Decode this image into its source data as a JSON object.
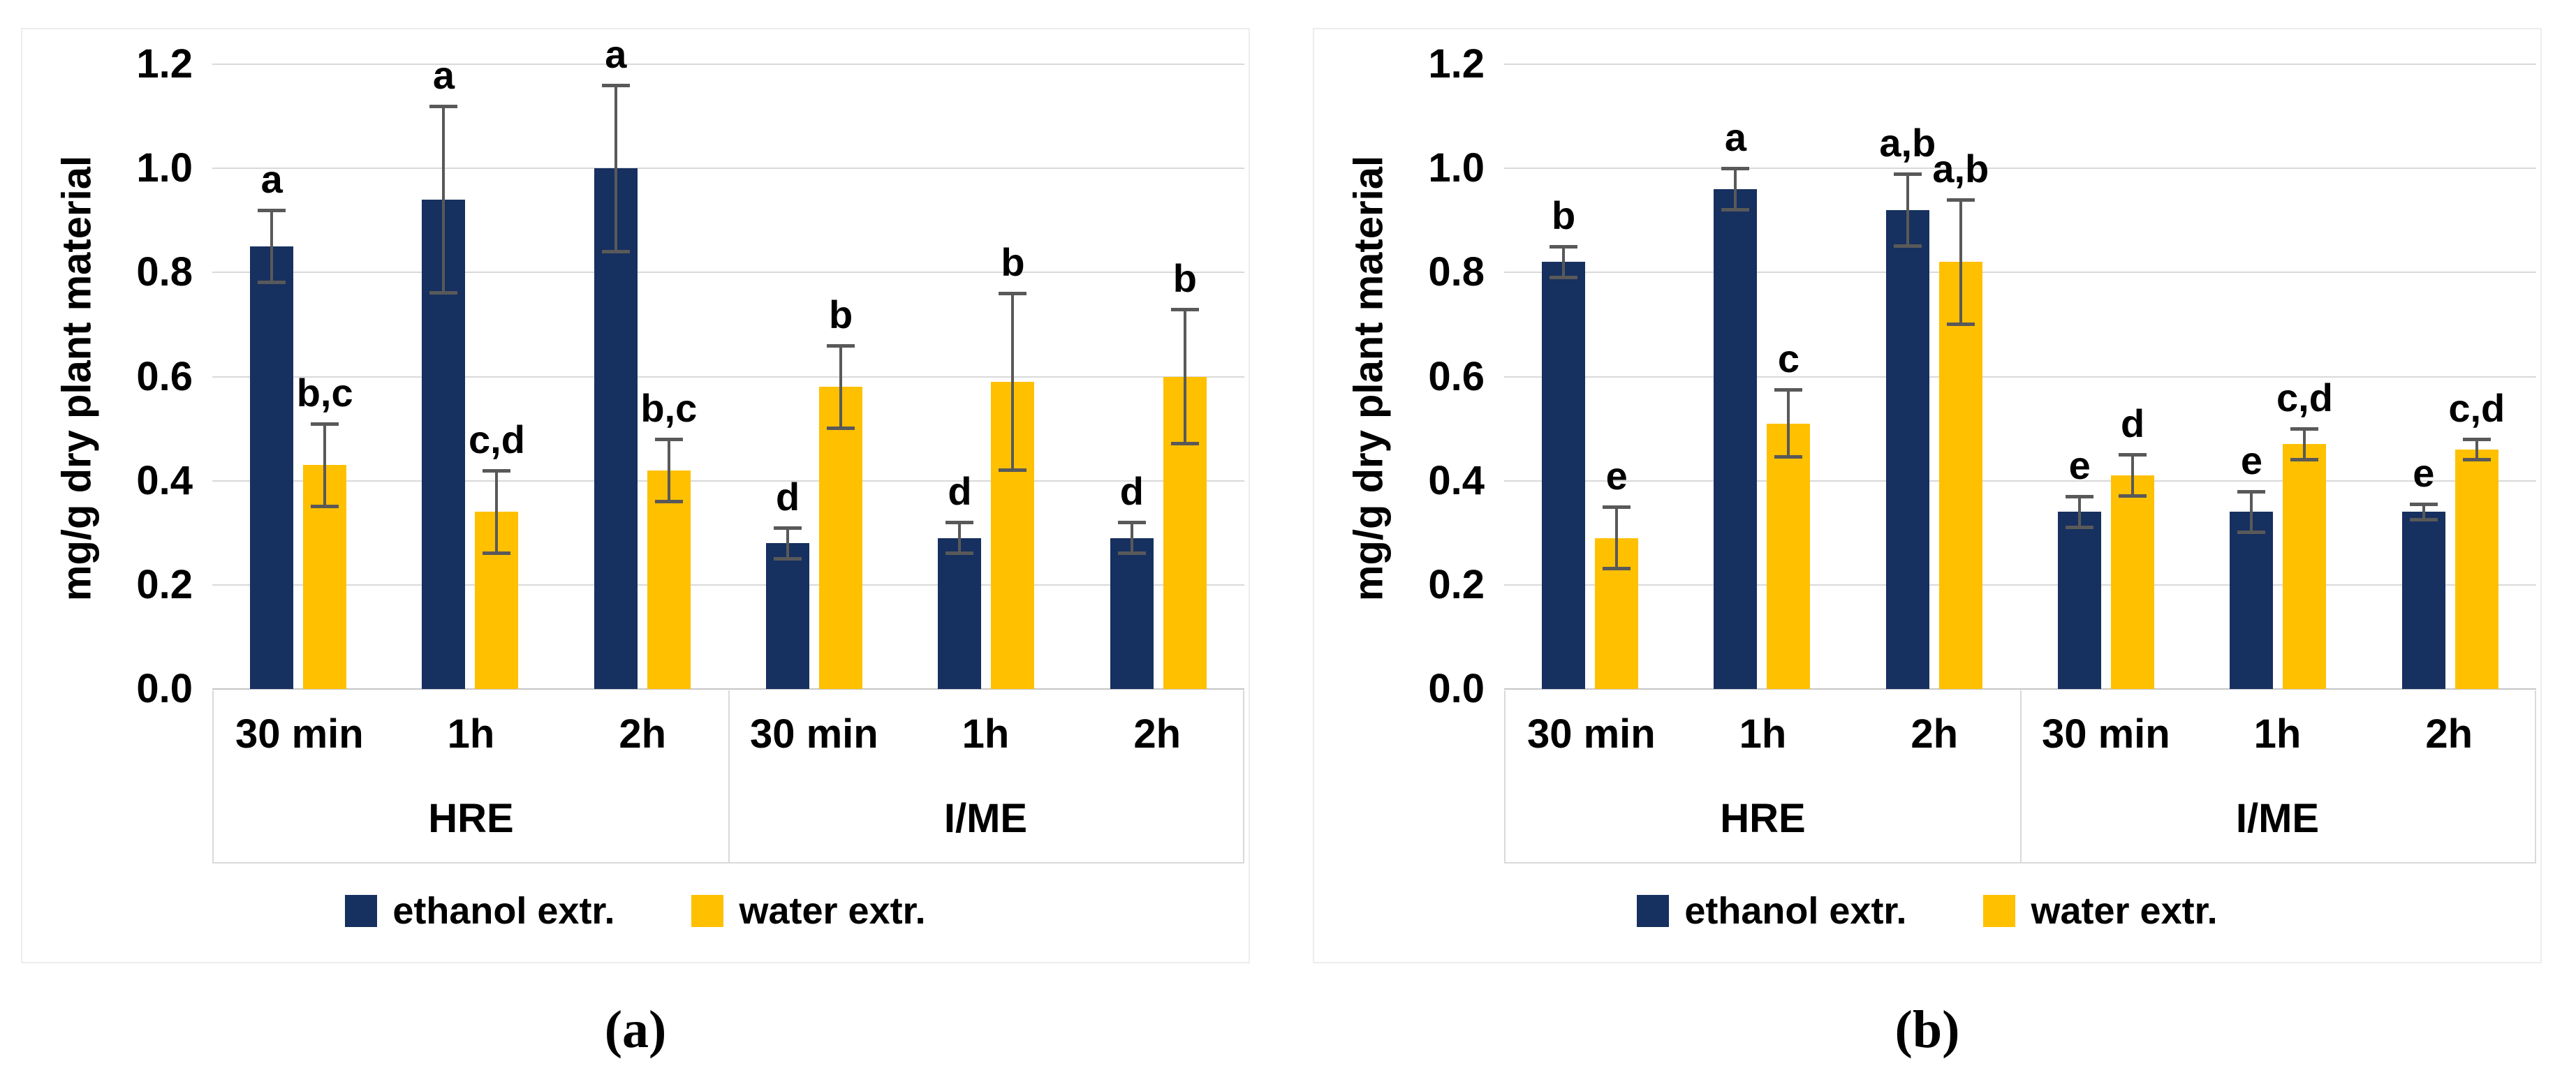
{
  "figure": {
    "background": "#ffffff",
    "panel_border_color": "#ededed",
    "grid_color": "#d9d9d9",
    "axis_line_color": "#c6c6c6",
    "error_bar_color": "#595959"
  },
  "chart_data": [
    {
      "type": "bar",
      "id": "a",
      "caption": "(a)",
      "ylabel": "mg/g dry plant material",
      "xlabel": "",
      "ylim": [
        0.0,
        1.2
      ],
      "yticks": [
        "0.0",
        "0.2",
        "0.4",
        "0.6",
        "0.8",
        "1.0",
        "1.2"
      ],
      "grid": true,
      "legend_position": "bottom",
      "categories": [
        "30 min",
        "1h",
        "2h",
        "30 min",
        "1h",
        "2h"
      ],
      "group_labels": [
        "HRE",
        "I/ME"
      ],
      "series": [
        {
          "name": "ethanol extr.",
          "color": "#16305f",
          "values": [
            0.85,
            0.94,
            1.0,
            0.28,
            0.29,
            0.29
          ],
          "errors": [
            0.07,
            0.18,
            0.16,
            0.03,
            0.03,
            0.03
          ],
          "letters": [
            "a",
            "a",
            "a",
            "d",
            "d",
            "d"
          ]
        },
        {
          "name": "water extr.",
          "color": "#ffc000",
          "values": [
            0.43,
            0.34,
            0.42,
            0.58,
            0.59,
            0.6
          ],
          "errors": [
            0.08,
            0.08,
            0.06,
            0.08,
            0.17,
            0.13
          ],
          "letters": [
            "b,c",
            "c,d",
            "b,c",
            "b",
            "b",
            "b"
          ]
        }
      ]
    },
    {
      "type": "bar",
      "id": "b",
      "caption": "(b)",
      "ylabel": "mg/g dry plant material",
      "xlabel": "",
      "ylim": [
        0.0,
        1.2
      ],
      "yticks": [
        "0.0",
        "0.2",
        "0.4",
        "0.6",
        "0.8",
        "1.0",
        "1.2"
      ],
      "grid": true,
      "legend_position": "bottom",
      "categories": [
        "30 min",
        "1h",
        "2h",
        "30 min",
        "1h",
        "2h"
      ],
      "group_labels": [
        "HRE",
        "I/ME"
      ],
      "series": [
        {
          "name": "ethanol extr.",
          "color": "#16305f",
          "values": [
            0.82,
            0.96,
            0.92,
            0.34,
            0.34,
            0.34
          ],
          "errors": [
            0.03,
            0.04,
            0.07,
            0.03,
            0.04,
            0.015
          ],
          "letters": [
            "b",
            "a",
            "a,b",
            "e",
            "e",
            "e"
          ]
        },
        {
          "name": "water extr.",
          "color": "#ffc000",
          "values": [
            0.29,
            0.51,
            0.82,
            0.41,
            0.47,
            0.46
          ],
          "errors": [
            0.06,
            0.065,
            0.12,
            0.04,
            0.03,
            0.02
          ],
          "letters": [
            "e",
            "c",
            "a,b",
            "d",
            "c,d",
            "c,d"
          ]
        }
      ]
    }
  ]
}
